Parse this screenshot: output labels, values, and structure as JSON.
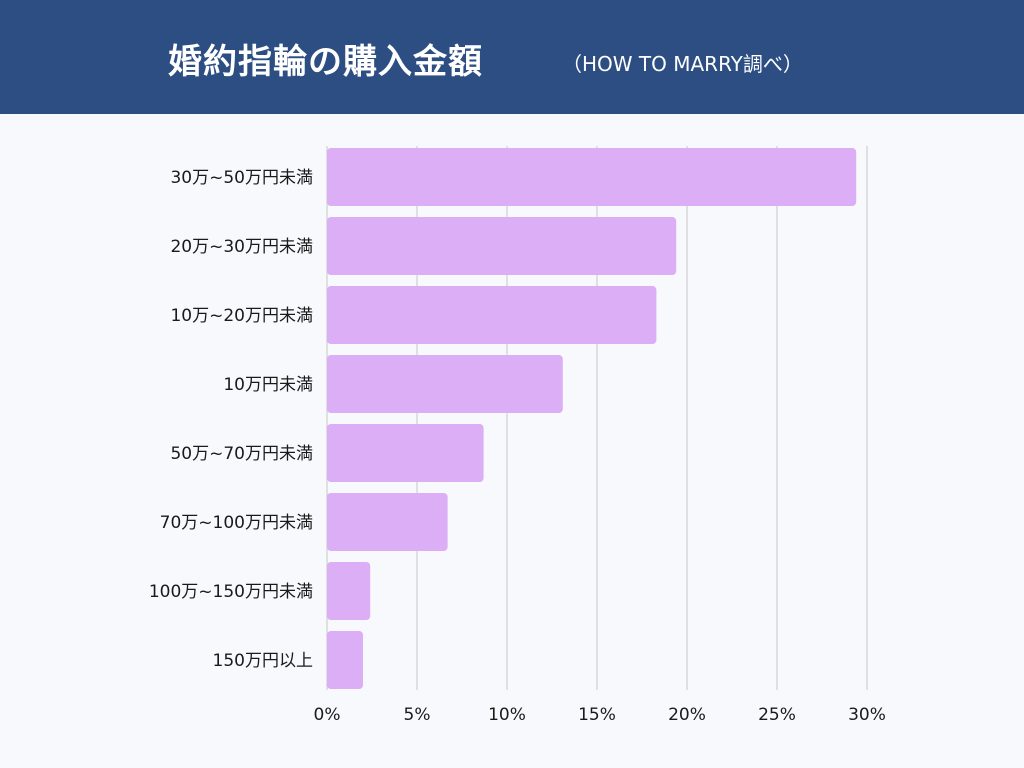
{
  "header": {
    "title": "婚約指輪の購入金額",
    "subtitle": "（HOW TO MARRY調べ）"
  },
  "colors": {
    "header_bg": "#2d4e82",
    "bar": "#dbaef5",
    "grid": "#c8c8c8"
  },
  "chart_data": {
    "type": "bar",
    "orientation": "horizontal",
    "title": "婚約指輪の購入金額",
    "subtitle": "（HOW TO MARRY調べ）",
    "categories": [
      "30万~50万円未満",
      "20万~30万円未満",
      "10万~20万円未満",
      "10万円未満",
      "50万~70万円未満",
      "70万~100万円未満",
      "100万~150万円未満",
      "150万円以上"
    ],
    "values": [
      29.4,
      19.4,
      18.3,
      13.1,
      8.7,
      6.7,
      2.4,
      2.0
    ],
    "xlim": [
      0,
      30
    ],
    "xticks": [
      "0%",
      "5%",
      "10%",
      "15%",
      "20%",
      "25%",
      "30%"
    ],
    "grid": true,
    "legend": "none"
  }
}
